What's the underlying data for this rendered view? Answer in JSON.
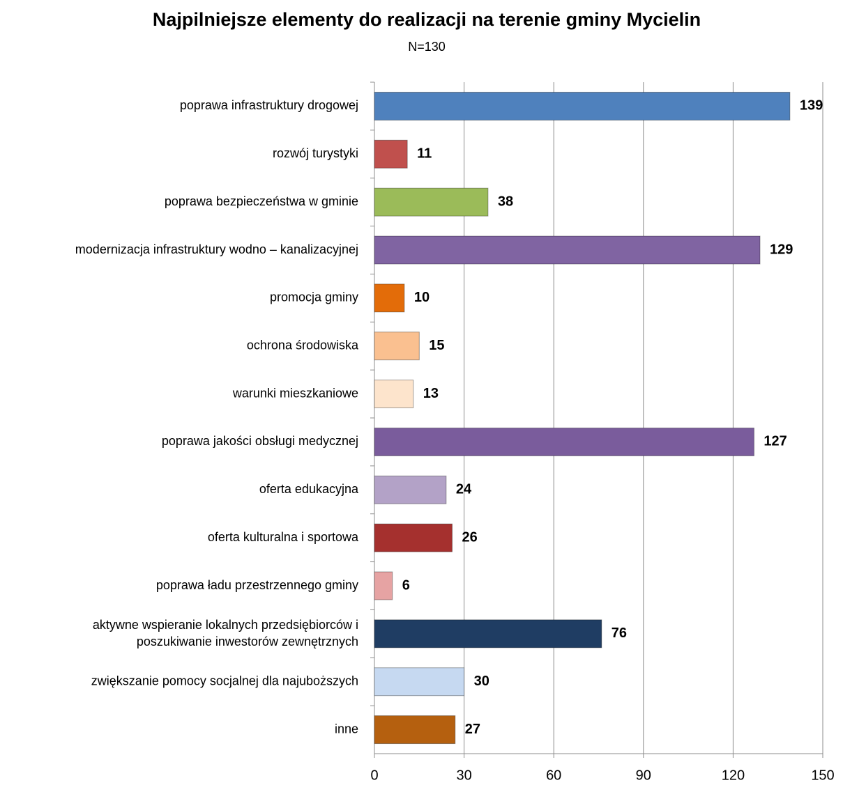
{
  "chart_data": {
    "type": "bar",
    "orientation": "horizontal",
    "title": "Najpilniejsze elementy do realizacji na terenie gminy Mycielin",
    "subtitle": "N=130",
    "categories": [
      "poprawa infrastruktury drogowej",
      "rozwój turystyki",
      "poprawa bezpieczeństwa w gminie",
      "modernizacja infrastruktury wodno – kanalizacyjnej",
      "promocja gminy",
      "ochrona środowiska",
      "warunki mieszkaniowe",
      "poprawa jakości obsługi medycznej",
      "oferta edukacyjna",
      "oferta kulturalna i sportowa",
      "poprawa ładu przestrzennego gminy",
      "aktywne wspieranie lokalnych przedsiębiorców i\nposzukiwanie inwestorów zewnętrznych",
      "zwiększanie pomocy socjalnej dla najuboższych",
      "inne"
    ],
    "values": [
      139,
      11,
      38,
      129,
      10,
      15,
      13,
      127,
      24,
      26,
      6,
      76,
      30,
      27
    ],
    "colors": [
      "#4f81bd",
      "#c0504d",
      "#9bbb59",
      "#8064a2",
      "#e36c09",
      "#fac090",
      "#fde4cc",
      "#7a5c9c",
      "#b3a2c7",
      "#a5302e",
      "#e6a3a3",
      "#1f3d63",
      "#c6d9f1",
      "#b5600f"
    ],
    "xlim": [
      0,
      150
    ],
    "xticks": [
      0,
      30,
      60,
      90,
      120,
      150
    ],
    "grid": true
  }
}
